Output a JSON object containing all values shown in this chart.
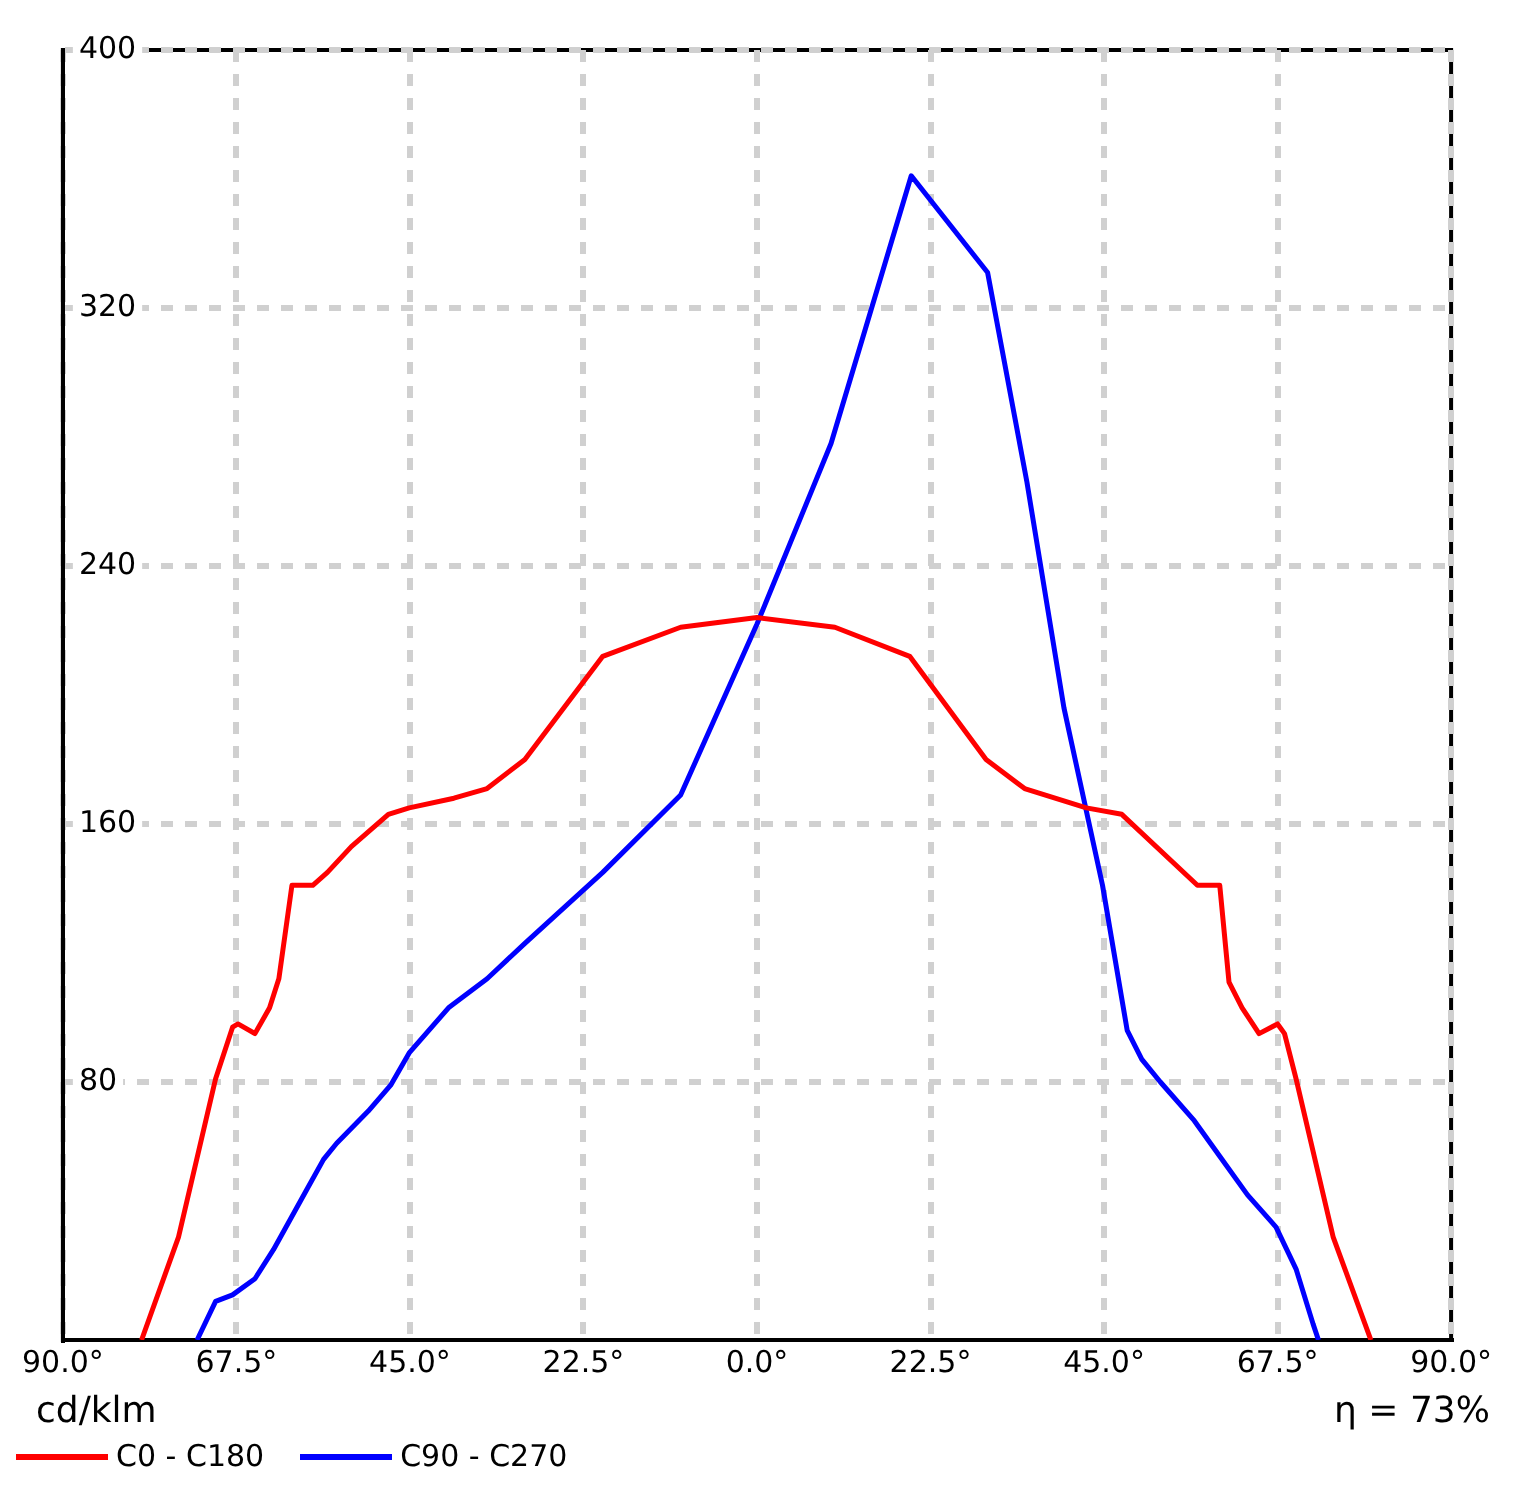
{
  "chart_data": {
    "type": "line",
    "annotations": [
      "cd/klm",
      "η = 73%"
    ],
    "xlim": [
      -90,
      90
    ],
    "ylim": [
      0,
      400
    ],
    "xticks": [
      {
        "value": -90,
        "label": "90.0°"
      },
      {
        "value": -67.5,
        "label": "67.5°"
      },
      {
        "value": -45,
        "label": "45.0°"
      },
      {
        "value": -22.5,
        "label": "22.5°"
      },
      {
        "value": 0,
        "label": "0.0°"
      },
      {
        "value": 22.5,
        "label": "22.5°"
      },
      {
        "value": 45,
        "label": "45.0°"
      },
      {
        "value": 67.5,
        "label": "67.5°"
      },
      {
        "value": 90,
        "label": "90.0°"
      }
    ],
    "yticks": [
      80,
      160,
      240,
      320,
      400
    ],
    "grid": true,
    "legend": "bottom left",
    "series": [
      {
        "name": "C0 - C180",
        "color": "#ff0000",
        "x": [
          -79.8,
          -75,
          -70.2,
          -68,
          -67.3,
          -65.1,
          -63.2,
          -62,
          -60.3,
          -57.6,
          -55.7,
          -52.6,
          -47.8,
          -45.1,
          -39.3,
          -35,
          -30.1,
          -20,
          -9.9,
          0,
          10.1,
          19.8,
          29.7,
          34.7,
          42.7,
          47.3,
          57.1,
          60,
          61.2,
          62.9,
          65.1,
          67.5,
          68.4,
          69.9,
          74.7,
          79.6
        ],
        "values": [
          0,
          32,
          81,
          97,
          98,
          95,
          103,
          112,
          141,
          141,
          145,
          153,
          163,
          165,
          168,
          171,
          180,
          212,
          221,
          224,
          221,
          212,
          180,
          171,
          165,
          163,
          141,
          141,
          111,
          103,
          95,
          98,
          95,
          81,
          32,
          0
        ]
      },
      {
        "name": "C90 - C270",
        "color": "#0000ff",
        "x": [
          -72.6,
          -70.2,
          -68,
          -65.1,
          -62.7,
          -58.3,
          -56.2,
          -54.5,
          -50.4,
          -47.5,
          -45.1,
          -40,
          -35,
          -30.1,
          -20,
          -9.9,
          0,
          9.6,
          20,
          29.9,
          35,
          39.8,
          44.8,
          48,
          49.9,
          52.3,
          56.7,
          60,
          63.6,
          67.3,
          69.9,
          72.1,
          72.8
        ],
        "values": [
          0,
          12,
          14,
          19,
          28,
          47,
          56,
          61,
          71,
          79,
          89,
          103,
          112,
          123,
          145,
          169,
          222,
          278,
          361,
          331,
          266,
          196,
          141,
          96,
          87,
          80,
          68,
          57,
          45,
          35,
          22,
          5,
          0
        ]
      }
    ]
  }
}
